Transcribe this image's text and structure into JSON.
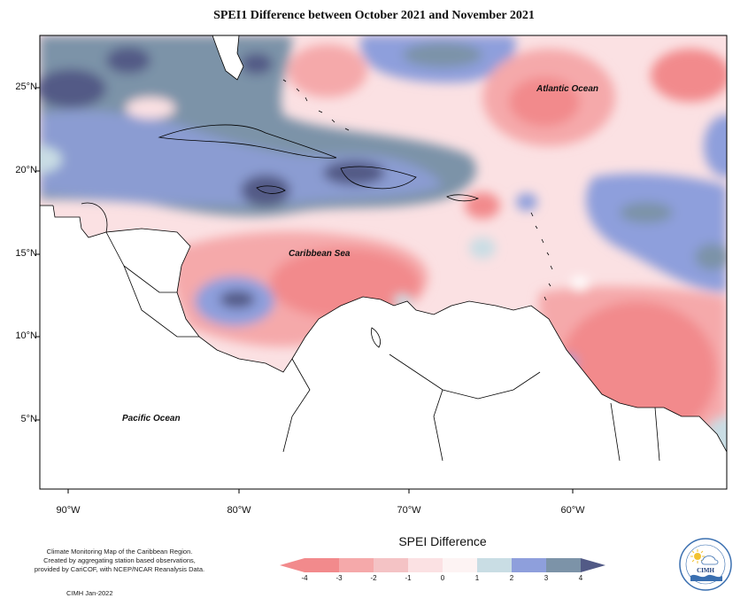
{
  "title": "SPEI1 Difference between October 2021 and November 2021",
  "latitude_labels": [
    "25°N",
    "20°N",
    "15°N",
    "10°N",
    "5°N"
  ],
  "longitude_labels": [
    "90°W",
    "80°W",
    "70°W",
    "60°W"
  ],
  "ocean_labels": {
    "atlantic": "Atlantic Ocean",
    "caribbean": "Caribbean Sea",
    "pacific": "Pacific Ocean"
  },
  "credits": {
    "line1": "Climate Monitoring Map of the Caribbean Region.",
    "line2": "Created by aggregating station based observations,",
    "line3": "provided by CariCOF, with NCEP/NCAR Reanalysis Data.",
    "date": "CIMH Jan-2022"
  },
  "legend": {
    "title": "SPEI Difference",
    "ticks": [
      "-4",
      "-3",
      "-2",
      "-1",
      "0",
      "1",
      "2",
      "3",
      "4"
    ],
    "colors": [
      "#f28a8c",
      "#f5a9aa",
      "#f4c3c5",
      "#fbe1e3",
      "#fdf3f3",
      "#c9dde4",
      "#8e9fdc",
      "#7c93a8",
      "#525a86"
    ]
  },
  "logo": {
    "text": "CIMH"
  }
}
